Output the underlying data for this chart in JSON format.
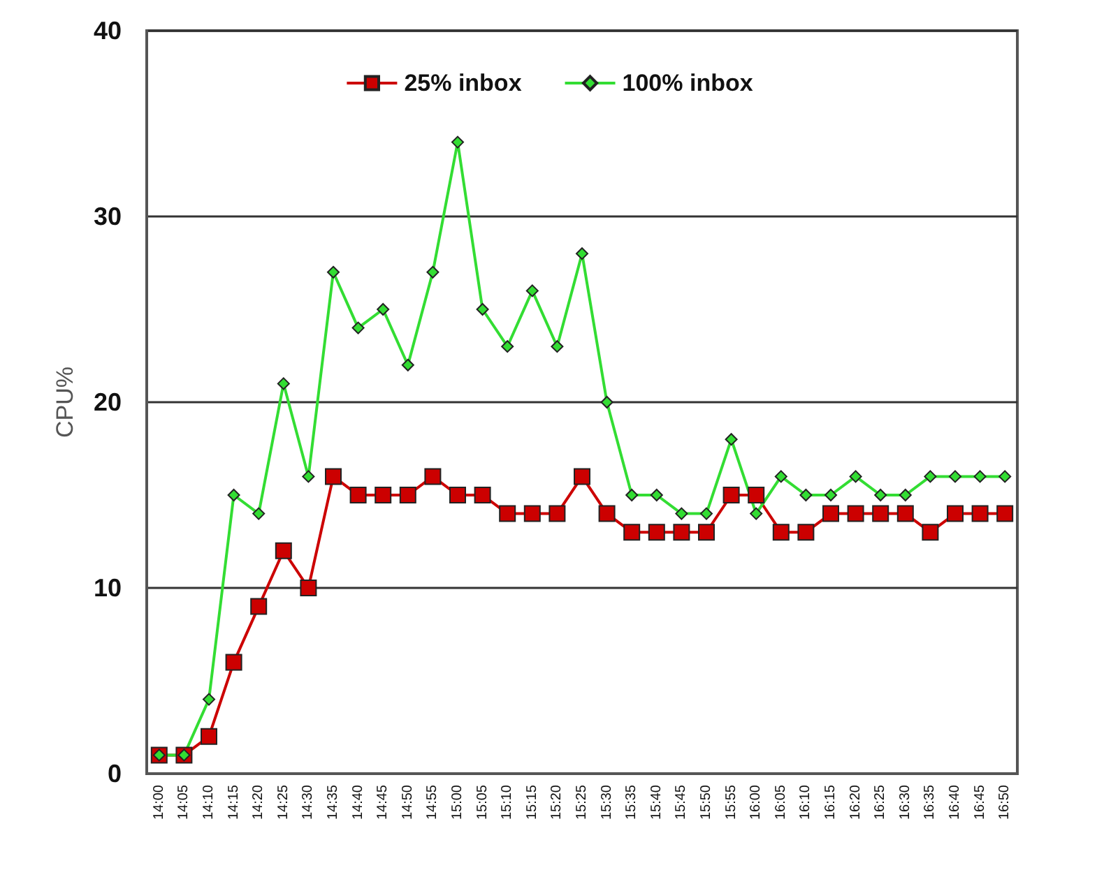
{
  "chart_data": {
    "type": "line",
    "ylabel": "CPU%",
    "categories": [
      "14:00",
      "14:05",
      "14:10",
      "14:15",
      "14:20",
      "14:25",
      "14:30",
      "14:35",
      "14:40",
      "14:45",
      "14:50",
      "14:55",
      "15:00",
      "15:05",
      "15:10",
      "15:15",
      "15:20",
      "15:25",
      "15:30",
      "15:35",
      "15:40",
      "15:45",
      "15:50",
      "15:55",
      "16:00",
      "16:05",
      "16:10",
      "16:15",
      "16:20",
      "16:25",
      "16:30",
      "16:35",
      "16:40",
      "16:45",
      "16:50"
    ],
    "series": [
      {
        "name": "25% inbox",
        "color": "#cc0000",
        "marker": "square",
        "values": [
          1,
          1,
          2,
          6,
          9,
          12,
          10,
          16,
          15,
          15,
          15,
          16,
          15,
          15,
          14,
          14,
          14,
          16,
          14,
          13,
          13,
          13,
          13,
          15,
          15,
          13,
          13,
          14,
          14,
          14,
          14,
          13,
          14,
          14,
          14
        ]
      },
      {
        "name": "100% inbox",
        "color": "#33dd33",
        "marker": "diamond",
        "values": [
          1,
          1,
          4,
          15,
          14,
          21,
          16,
          27,
          24,
          25,
          22,
          27,
          34,
          25,
          23,
          26,
          23,
          28,
          20,
          15,
          15,
          14,
          14,
          18,
          14,
          16,
          15,
          15,
          16,
          15,
          15,
          16,
          16,
          16,
          16
        ]
      }
    ],
    "ylim": [
      0,
      40
    ],
    "yticks": [
      0,
      10,
      20,
      30,
      40
    ],
    "grid": "y",
    "legend": "top",
    "line_style": "solid"
  }
}
